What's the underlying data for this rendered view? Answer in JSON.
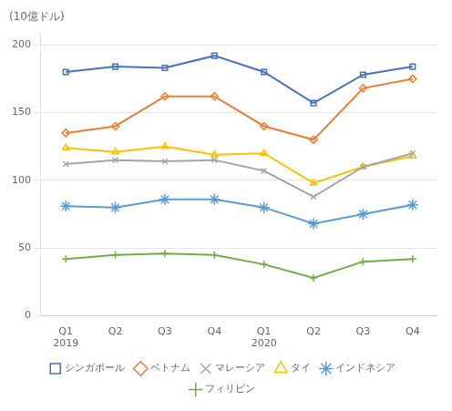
{
  "chart_data": {
    "type": "line",
    "title": "(10億ドル)",
    "categories": [
      "Q1\n2019",
      "Q2",
      "Q3",
      "Q4",
      "Q1\n2020",
      "Q2",
      "Q3",
      "Q4"
    ],
    "series": [
      {
        "name": "シンガポール",
        "color": "#4472C4",
        "marker": "square",
        "values": [
          180,
          184,
          183,
          192,
          180,
          157,
          178,
          184
        ]
      },
      {
        "name": "ベトナム",
        "color": "#ED7D31",
        "marker": "diamond",
        "values": [
          135,
          140,
          162,
          162,
          140,
          130,
          168,
          175
        ]
      },
      {
        "name": "マレーシア",
        "color": "#A5A5A5",
        "marker": "x",
        "values": [
          112,
          115,
          114,
          115,
          107,
          88,
          110,
          120
        ]
      },
      {
        "name": "タイ",
        "color": "#FFC000",
        "marker": "triangle",
        "values": [
          124,
          121,
          125,
          119,
          120,
          98,
          110,
          118
        ]
      },
      {
        "name": "インドネシア",
        "color": "#5B9BD5",
        "marker": "star",
        "values": [
          81,
          80,
          86,
          86,
          80,
          68,
          75,
          82
        ]
      },
      {
        "name": "フィリピン",
        "color": "#70AD47",
        "marker": "plus",
        "values": [
          42,
          45,
          46,
          45,
          38,
          28,
          40,
          42
        ]
      }
    ],
    "ylim": [
      0,
      210
    ],
    "yticks": [
      0,
      50,
      100,
      150,
      200
    ],
    "grid": true,
    "legend": "bottom"
  }
}
